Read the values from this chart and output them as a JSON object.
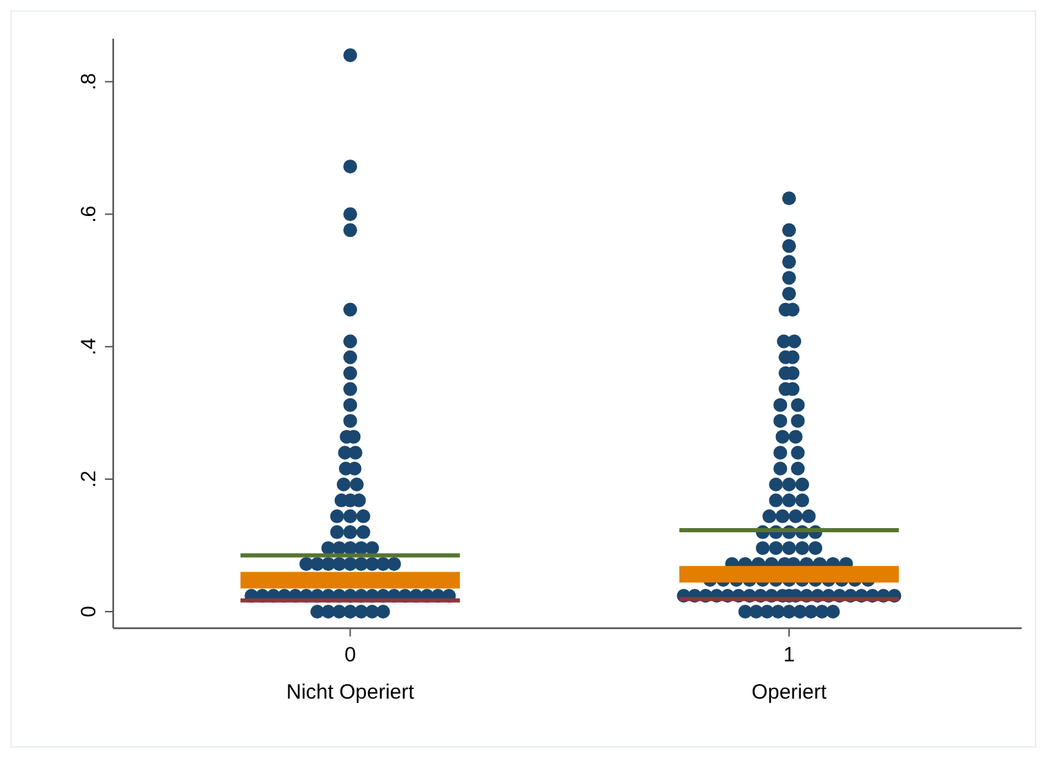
{
  "chart_data": {
    "type": "scatter",
    "xlim": [
      -0.54,
      1.53
    ],
    "ylim": [
      -0.025,
      0.865
    ],
    "xticks": [
      0,
      1
    ],
    "yticks": [
      0,
      {
        "value": 0.2,
        "label": ".2"
      },
      {
        "value": 0.4,
        "label": ".4"
      },
      {
        "value": 0.6,
        "label": ".6"
      },
      {
        "value": 0.8,
        "label": ".8"
      }
    ],
    "annotations": [
      "Nicht Operiert",
      "Operiert"
    ],
    "grid": false,
    "marker": "circle",
    "series": [
      {
        "color": "#1a476f",
        "x": [
          -0.075,
          -0.05,
          -0.025,
          0,
          0.025,
          0.05,
          0.075,
          -0.225,
          -0.2,
          -0.175,
          -0.15,
          -0.125,
          -0.1,
          -0.075,
          -0.05,
          -0.025,
          0,
          0.025,
          0.05,
          0.075,
          0.1,
          0.125,
          0.15,
          0.175,
          0.2,
          0.225,
          -0.1,
          -0.075,
          -0.05,
          -0.025,
          0,
          0.025,
          0.05,
          0.075,
          0.1,
          -0.05,
          -0.025,
          0,
          0.025,
          0.05,
          -0.03,
          0,
          0.03,
          -0.03,
          0,
          0.03,
          -0.02,
          0,
          0.02,
          -0.015,
          0.015,
          -0.01,
          0.01,
          -0.012,
          0.012,
          -0.008,
          0.008,
          0,
          0,
          0,
          0,
          0,
          0,
          0,
          0,
          0,
          0,
          0
        ],
        "values": [
          0,
          0,
          0,
          0,
          0,
          0,
          0,
          0.024,
          0.024,
          0.024,
          0.024,
          0.024,
          0.024,
          0.024,
          0.024,
          0.024,
          0.024,
          0.024,
          0.024,
          0.024,
          0.024,
          0.024,
          0.024,
          0.024,
          0.024,
          0.024,
          0.072,
          0.072,
          0.072,
          0.072,
          0.072,
          0.072,
          0.072,
          0.072,
          0.072,
          0.096,
          0.096,
          0.096,
          0.096,
          0.096,
          0.12,
          0.12,
          0.12,
          0.144,
          0.144,
          0.144,
          0.168,
          0.168,
          0.168,
          0.192,
          0.192,
          0.216,
          0.216,
          0.24,
          0.24,
          0.264,
          0.264,
          0.288,
          0.312,
          0.336,
          0.36,
          0.384,
          0.408,
          0.456,
          0.576,
          0.6,
          0.672,
          0.84
        ]
      },
      {
        "color": "#1a476f",
        "x": [
          0.9,
          0.925,
          0.95,
          0.975,
          1,
          1.025,
          1.05,
          1.075,
          1.1,
          0.76,
          0.785,
          0.81,
          0.835,
          0.86,
          0.885,
          0.91,
          0.935,
          0.96,
          0.985,
          1,
          1.015,
          1.04,
          1.065,
          1.09,
          1.115,
          1.14,
          1.165,
          1.19,
          1.215,
          1.24,
          0.82,
          0.85,
          0.88,
          0.91,
          0.94,
          0.97,
          1,
          1.03,
          1.06,
          1.09,
          1.12,
          1.15,
          1.18,
          0.87,
          0.9,
          0.93,
          0.96,
          0.99,
          1.01,
          1.04,
          1.07,
          1.1,
          1.13,
          0.94,
          0.97,
          1,
          1.03,
          1.06,
          0.94,
          0.97,
          1,
          1.03,
          1.06,
          0.955,
          0.985,
          1.015,
          1.045,
          0.97,
          1,
          1.03,
          0.97,
          1,
          1.03,
          0.98,
          1.02,
          0.98,
          1.02,
          0.985,
          1.015,
          0.98,
          1.02,
          0.98,
          1.02,
          0.992,
          1.008,
          0.992,
          1.008,
          0.992,
          1.008,
          0.988,
          1.012,
          0.992,
          1.008,
          1,
          1,
          1,
          1,
          1,
          1
        ],
        "values": [
          0,
          0,
          0,
          0,
          0,
          0,
          0,
          0,
          0,
          0.024,
          0.024,
          0.024,
          0.024,
          0.024,
          0.024,
          0.024,
          0.024,
          0.024,
          0.024,
          0.024,
          0.024,
          0.024,
          0.024,
          0.024,
          0.024,
          0.024,
          0.024,
          0.024,
          0.024,
          0.024,
          0.048,
          0.048,
          0.048,
          0.048,
          0.048,
          0.048,
          0.048,
          0.048,
          0.048,
          0.048,
          0.048,
          0.048,
          0.048,
          0.072,
          0.072,
          0.072,
          0.072,
          0.072,
          0.072,
          0.072,
          0.072,
          0.072,
          0.072,
          0.096,
          0.096,
          0.096,
          0.096,
          0.096,
          0.12,
          0.12,
          0.12,
          0.12,
          0.12,
          0.144,
          0.144,
          0.144,
          0.144,
          0.168,
          0.168,
          0.168,
          0.192,
          0.192,
          0.192,
          0.216,
          0.216,
          0.24,
          0.24,
          0.264,
          0.264,
          0.288,
          0.288,
          0.312,
          0.312,
          0.336,
          0.336,
          0.36,
          0.36,
          0.384,
          0.384,
          0.408,
          0.408,
          0.456,
          0.456,
          0.48,
          0.504,
          0.528,
          0.552,
          0.576,
          0.624
        ]
      },
      {
        "type": "bar",
        "color": "#e37e00",
        "x": [
          0,
          1
        ],
        "base": [
          0.035,
          0.044
        ],
        "values": [
          0.025,
          0.025
        ]
      },
      {
        "type": "line",
        "marker": "none",
        "color": "#55752f",
        "x": [
          -0.25,
          0.25
        ],
        "values": [
          0.085,
          0.085
        ]
      },
      {
        "type": "line",
        "marker": "none",
        "color": "#55752f",
        "x": [
          0.75,
          1.25
        ],
        "values": [
          0.123,
          0.123
        ]
      },
      {
        "type": "line",
        "marker": "none",
        "color": "#90353b",
        "x": [
          -0.25,
          0.25
        ],
        "values": [
          0.017,
          0.017
        ]
      },
      {
        "type": "line",
        "marker": "none",
        "color": "#90353b",
        "x": [
          0.75,
          1.25
        ],
        "values": [
          0.019,
          0.019
        ]
      }
    ]
  }
}
